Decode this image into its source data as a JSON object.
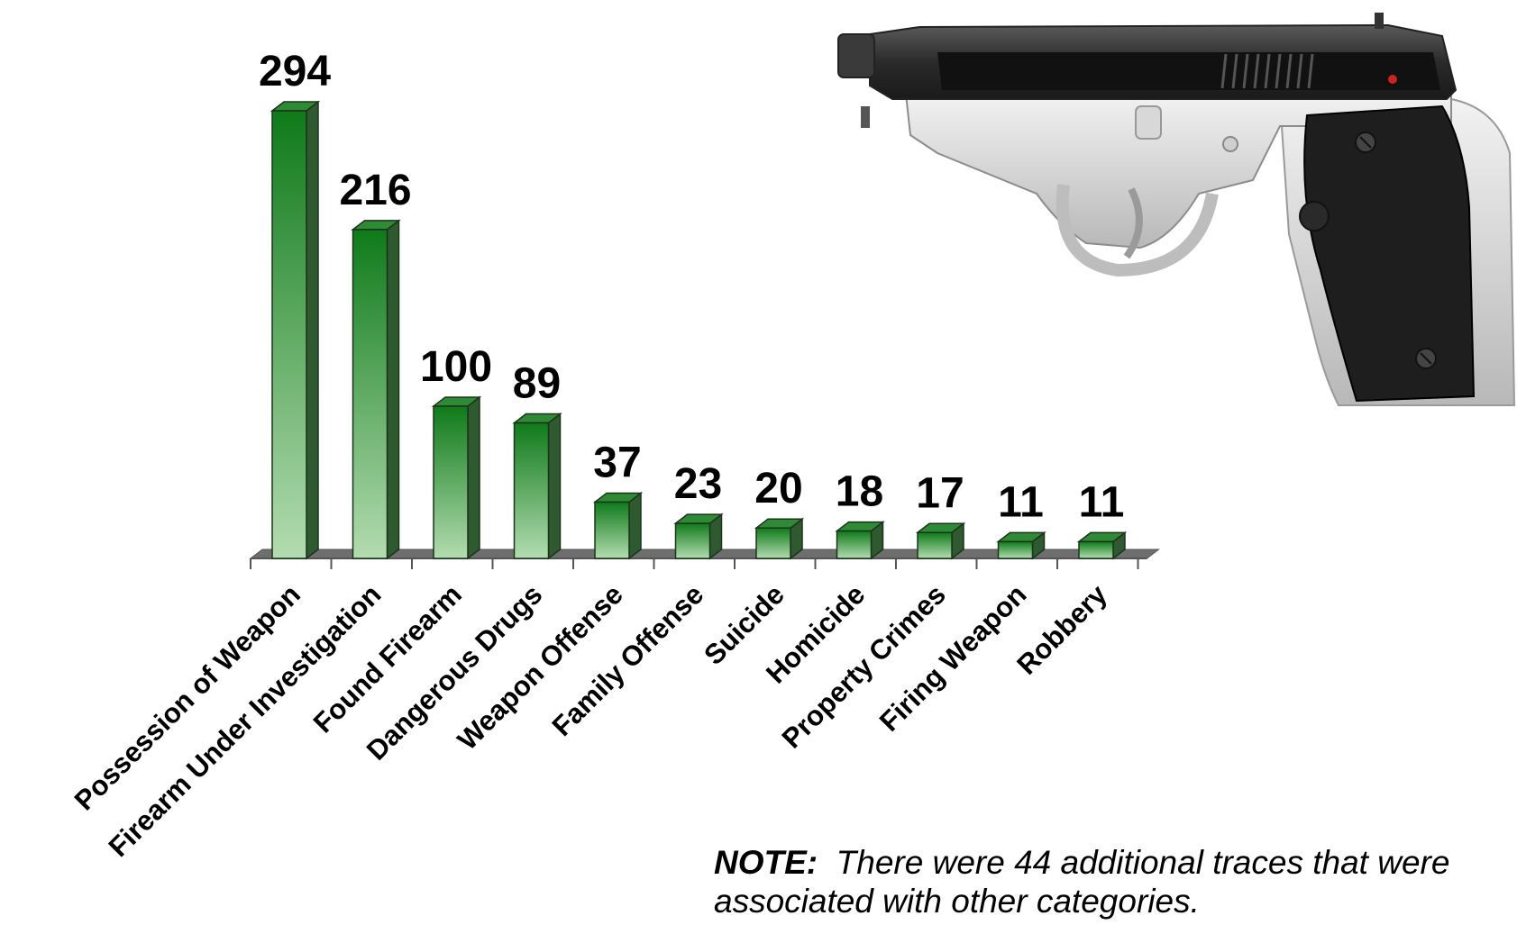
{
  "chart_data": {
    "type": "bar",
    "categories": [
      "Possession of Weapon",
      "Firearm Under Investigation",
      "Found Firearm",
      "Dangerous Drugs",
      "Weapon Offense",
      "Family Offense",
      "Suicide",
      "Homicide",
      "Property Crimes",
      "Firing Weapon",
      "Robbery"
    ],
    "values": [
      294,
      216,
      100,
      89,
      37,
      23,
      20,
      18,
      17,
      11,
      11
    ],
    "data_labels": [
      "294",
      "216",
      "100",
      "89",
      "37",
      "23",
      "20",
      "18",
      "17",
      "11",
      "11"
    ],
    "title": "",
    "xlabel": "",
    "ylabel": "",
    "ylim": [
      0,
      300
    ],
    "grid": false,
    "legend": "none",
    "bar_style": "3d-gradient",
    "colors": {
      "bar_top": "#0f7a1a",
      "bar_bottom": "#b3dcb0",
      "bar_side": "#2f5a2f",
      "bar_cap": "#2f8a35",
      "floor": "#6e6e6e"
    }
  },
  "note": {
    "label": "NOTE:",
    "text": "There were 44 additional traces that were associated with other categories."
  },
  "image": {
    "icon": "pistol-icon"
  }
}
